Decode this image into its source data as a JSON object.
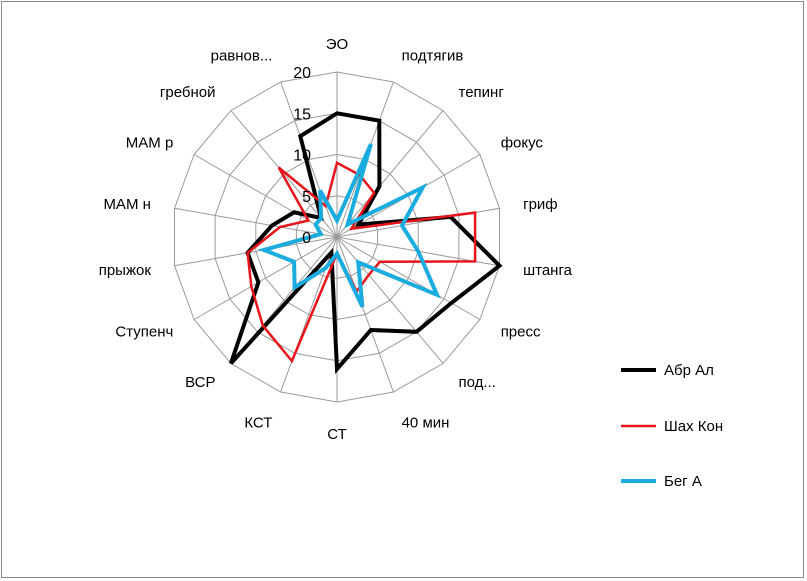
{
  "chart_data": {
    "type": "radar",
    "title": "",
    "categories": [
      "ЭО",
      "подтягив",
      "тепинг",
      "фокус",
      "гриф",
      "штанга",
      "пресс",
      "под...",
      "40 мин",
      "СТ",
      "КСТ",
      "ВСР",
      "Ступенч",
      "прыжок",
      "МАМ н",
      "МАМ р",
      "гребной",
      "равнов..."
    ],
    "rlim": [
      0,
      20
    ],
    "ticks": [
      0,
      5,
      10,
      15,
      20
    ],
    "tick_labels": [
      "0",
      "5",
      "10",
      "15",
      "20"
    ],
    "series": [
      {
        "name": "Абр Ал",
        "color": "#000000",
        "width": 4,
        "values": [
          15,
          15,
          8,
          3,
          14,
          20,
          16,
          15,
          12,
          16,
          2,
          20,
          11,
          11,
          8,
          6,
          3,
          13
        ]
      },
      {
        "name": "Шах Кон",
        "color": "#e8141a",
        "width": 2.5,
        "values": [
          9,
          8,
          7,
          2,
          17,
          17,
          6,
          6,
          7,
          2,
          16,
          14,
          12,
          11,
          7,
          4,
          11,
          4
        ]
      },
      {
        "name": "Бег А",
        "color": "#1aabdf",
        "width": 4,
        "values": [
          2,
          12,
          2,
          12,
          8,
          10,
          14,
          4,
          9,
          2,
          4,
          8,
          6,
          9,
          2,
          3,
          3,
          6
        ]
      }
    ],
    "legend": {
      "position": "right"
    }
  }
}
